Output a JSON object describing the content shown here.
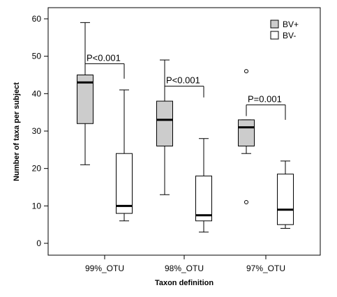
{
  "chart_data": {
    "type": "box",
    "xlabel": "Taxon definition",
    "ylabel": "Number of taxa per subject",
    "ylim": [
      -3,
      64
    ],
    "yticks": [
      0,
      10,
      20,
      30,
      40,
      50,
      60
    ],
    "categories": [
      "99%_OTU",
      "98%_OTU",
      "97%_OTU"
    ],
    "legend_position": "top-right",
    "series": [
      {
        "name": "BV+",
        "color": "#cccccc",
        "boxes": [
          {
            "category": "99%_OTU",
            "whisker_low": 21,
            "q1": 32,
            "median": 43,
            "q3": 45,
            "whisker_high": 59,
            "outliers": []
          },
          {
            "category": "98%_OTU",
            "whisker_low": 13,
            "q1": 26,
            "median": 33,
            "q3": 38,
            "whisker_high": 49,
            "outliers": []
          },
          {
            "category": "97%_OTU",
            "whisker_low": 24,
            "q1": 26,
            "median": 31,
            "q3": 33,
            "whisker_high": 33,
            "outliers": [
              46,
              11
            ]
          }
        ]
      },
      {
        "name": "BV-",
        "color": "#ffffff",
        "boxes": [
          {
            "category": "99%_OTU",
            "whisker_low": 6,
            "q1": 8,
            "median": 10,
            "q3": 24,
            "whisker_high": 41,
            "outliers": []
          },
          {
            "category": "98%_OTU",
            "whisker_low": 3,
            "q1": 6,
            "median": 7.5,
            "q3": 18,
            "whisker_high": 28,
            "outliers": []
          },
          {
            "category": "97%_OTU",
            "whisker_low": 4,
            "q1": 5,
            "median": 9,
            "q3": 18.5,
            "whisker_high": 22,
            "outliers": []
          }
        ]
      }
    ],
    "annotations": [
      {
        "category": "99%_OTU",
        "text": "P<0.001",
        "bracket_y": 48,
        "left_drop_y": 45.5,
        "right_drop_y": 44
      },
      {
        "category": "98%_OTU",
        "text": "P<0.001",
        "bracket_y": 42,
        "left_drop_y": 39,
        "right_drop_y": 39
      },
      {
        "category": "97%_OTU",
        "text": "P=0.001",
        "bracket_y": 37,
        "left_drop_y": 34,
        "right_drop_y": 33
      }
    ]
  }
}
